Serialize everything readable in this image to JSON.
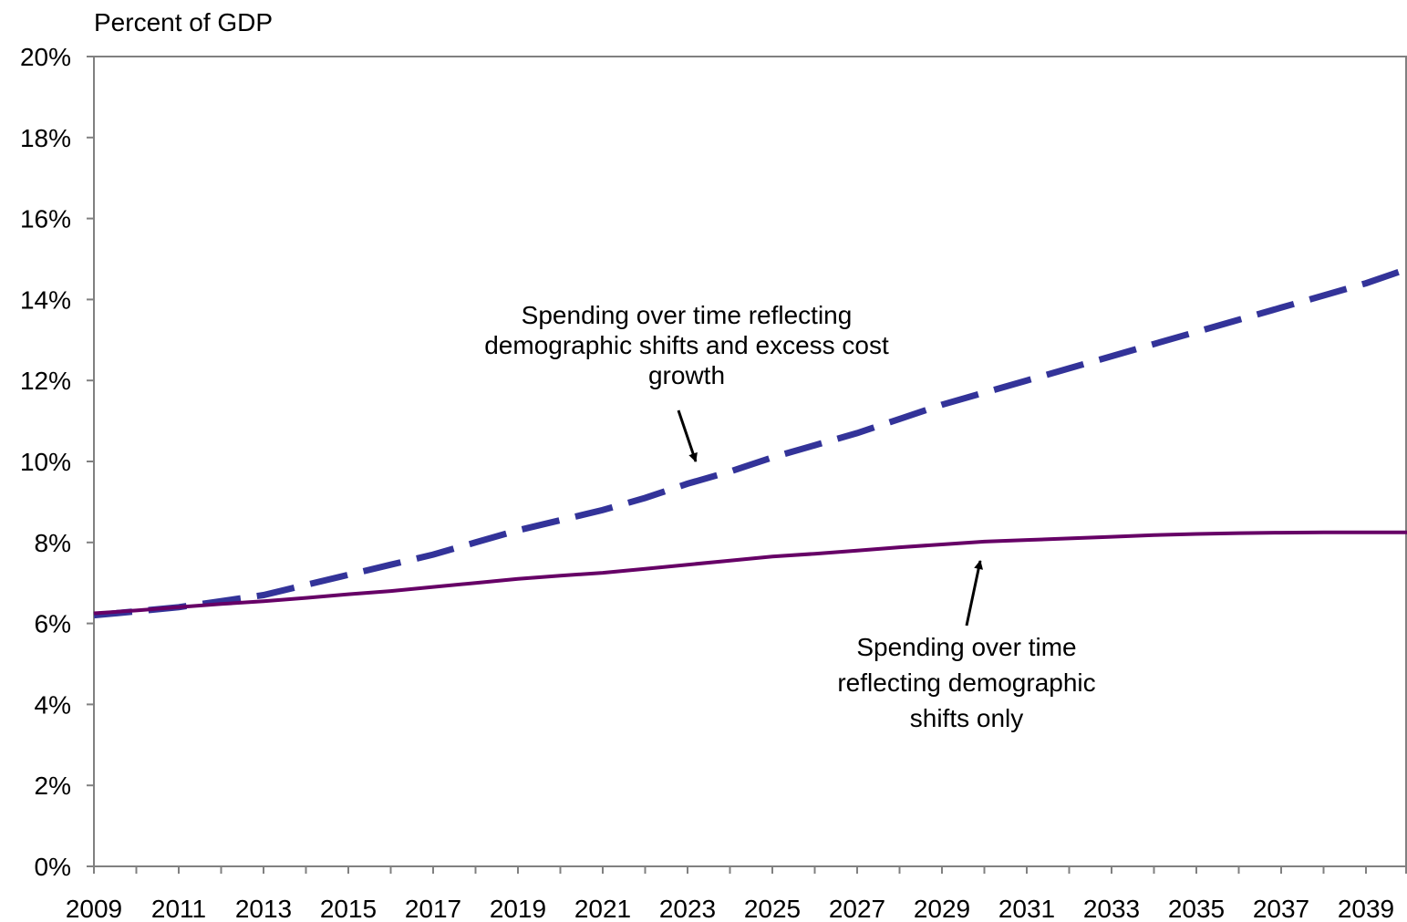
{
  "chart_data": {
    "type": "line",
    "title": "",
    "ylabel": "Percent of GDP",
    "xlabel": "",
    "ylim": [
      0,
      20
    ],
    "y_ticks": [
      0,
      2,
      4,
      6,
      8,
      10,
      12,
      14,
      16,
      18,
      20
    ],
    "y_tick_labels": [
      "0%",
      "2%",
      "4%",
      "6%",
      "8%",
      "10%",
      "12%",
      "14%",
      "16%",
      "18%",
      "20%"
    ],
    "xlim": [
      2009,
      2040
    ],
    "x_tick_labels": [
      "2009",
      "2011",
      "2013",
      "2015",
      "2017",
      "2019",
      "2021",
      "2023",
      "2025",
      "2027",
      "2029",
      "2031",
      "2033",
      "2035",
      "2037",
      "2039"
    ],
    "grid": false,
    "series": [
      {
        "key": "excess",
        "style": "dashed",
        "color": "#333399",
        "x": [
          2009,
          2010,
          2011,
          2012,
          2013,
          2014,
          2015,
          2016,
          2017,
          2018,
          2019,
          2020,
          2021,
          2022,
          2023,
          2024,
          2025,
          2026,
          2027,
          2028,
          2029,
          2030,
          2031,
          2032,
          2033,
          2034,
          2035,
          2036,
          2037,
          2038,
          2039,
          2040
        ],
        "values": [
          6.2,
          6.3,
          6.4,
          6.55,
          6.7,
          6.95,
          7.2,
          7.45,
          7.7,
          8.0,
          8.3,
          8.55,
          8.8,
          9.1,
          9.45,
          9.75,
          10.1,
          10.4,
          10.7,
          11.05,
          11.4,
          11.7,
          12.0,
          12.3,
          12.6,
          12.9,
          13.2,
          13.5,
          13.8,
          14.1,
          14.4,
          14.75
        ]
      },
      {
        "key": "demographic",
        "style": "solid",
        "color": "#660066",
        "x": [
          2009,
          2010,
          2011,
          2012,
          2013,
          2014,
          2015,
          2016,
          2017,
          2018,
          2019,
          2020,
          2021,
          2022,
          2023,
          2024,
          2025,
          2026,
          2027,
          2028,
          2029,
          2030,
          2031,
          2032,
          2033,
          2034,
          2035,
          2036,
          2037,
          2038,
          2039,
          2040
        ],
        "values": [
          6.25,
          6.32,
          6.4,
          6.48,
          6.55,
          6.63,
          6.72,
          6.8,
          6.9,
          7.0,
          7.1,
          7.18,
          7.25,
          7.35,
          7.45,
          7.55,
          7.65,
          7.72,
          7.8,
          7.88,
          7.95,
          8.02,
          8.06,
          8.1,
          8.14,
          8.18,
          8.21,
          8.23,
          8.24,
          8.25,
          8.25,
          8.25
        ]
      }
    ],
    "annotations": [
      {
        "key": "excess",
        "lines": [
          "Spending over time reflecting",
          "demographic shifts and excess cost",
          "growth"
        ]
      },
      {
        "key": "demographic",
        "lines": [
          "Spending over time",
          "reflecting demographic",
          "shifts only"
        ]
      }
    ]
  }
}
